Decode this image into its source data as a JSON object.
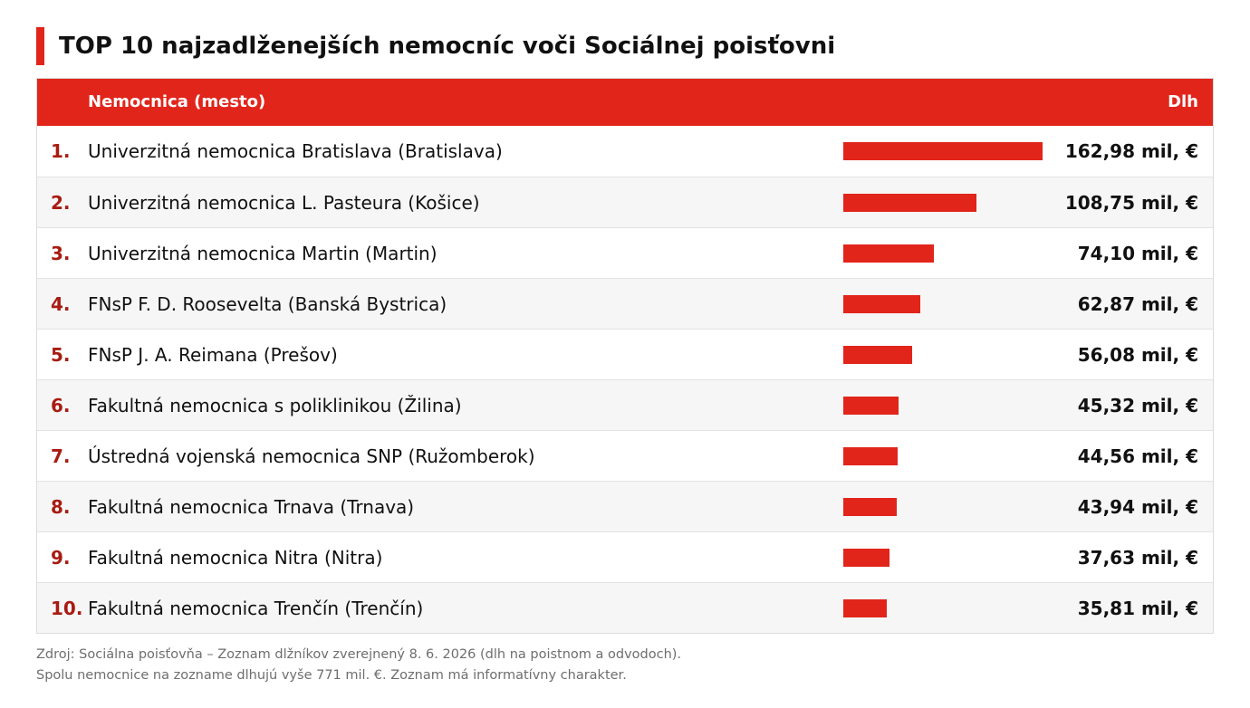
{
  "header": {
    "title": "TOP 10 najzadlženejších nemocníc voči Sociálnej poisťovni"
  },
  "table": {
    "col_name": "Nemocnica (mesto)",
    "col_debt": "Dlh"
  },
  "chart_data": {
    "type": "bar",
    "title": "TOP 10 najzadlženejších nemocníc voči Sociálnej poisťovni",
    "unit": "mil. €",
    "xlim": [
      0,
      162.98
    ],
    "rows": [
      {
        "rank": "1.",
        "name": "Univerzitná nemocnica Bratislava (Bratislava)",
        "value": 162.98,
        "label": "162,98 mil, €"
      },
      {
        "rank": "2.",
        "name": "Univerzitná nemocnica L. Pasteura (Košice)",
        "value": 108.75,
        "label": "108,75 mil, €"
      },
      {
        "rank": "3.",
        "name": "Univerzitná nemocnica Martin (Martin)",
        "value": 74.1,
        "label": "74,10 mil, €"
      },
      {
        "rank": "4.",
        "name": "FNsP F. D. Roosevelta (Banská Bystrica)",
        "value": 62.87,
        "label": "62,87 mil, €"
      },
      {
        "rank": "5.",
        "name": "FNsP J. A. Reimana (Prešov)",
        "value": 56.08,
        "label": "56,08 mil, €"
      },
      {
        "rank": "6.",
        "name": "Fakultná nemocnica s poliklinikou (Žilina)",
        "value": 45.32,
        "label": "45,32 mil, €"
      },
      {
        "rank": "7.",
        "name": "Ústredná vojenská nemocnica SNP (Ružomberok)",
        "value": 44.56,
        "label": "44,56 mil, €"
      },
      {
        "rank": "8.",
        "name": "Fakultná nemocnica Trnava (Trnava)",
        "value": 43.94,
        "label": "43,94 mil, €"
      },
      {
        "rank": "9.",
        "name": "Fakultná nemocnica Nitra (Nitra)",
        "value": 37.63,
        "label": "37,63 mil, €"
      },
      {
        "rank": "10.",
        "name": "Fakultná nemocnica Trenčín (Trenčín)",
        "value": 35.81,
        "label": "35,81 mil, €"
      }
    ]
  },
  "footer": {
    "source": "Zdroj: Sociálna poisťovňa – Zoznam dlžníkov zverejnený 8. 6. 2026 (dlh na poistnom a odvodoch).",
    "note": "Spolu nemocnice na zozname dlhujú vyše 771 mil. €. Zoznam má informatívny charakter."
  },
  "colors": {
    "accent": "#e1251b",
    "rank": "#a81c12",
    "row_alt": "#f6f6f6"
  }
}
